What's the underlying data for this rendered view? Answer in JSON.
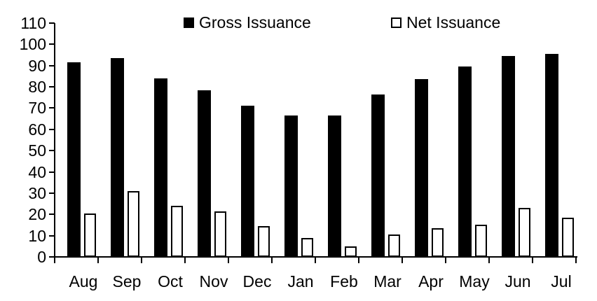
{
  "chart": {
    "background_color": "#ffffff",
    "axis_color": "#000000",
    "text_color": "#000000",
    "bar_fill_color": "#000000",
    "bar_outline_color": "#000000"
  },
  "chart_data": {
    "type": "bar",
    "title": "",
    "xlabel": "",
    "ylabel": "",
    "categories": [
      "Aug",
      "Sep",
      "Oct",
      "Nov",
      "Dec",
      "Jan",
      "Feb",
      "Mar",
      "Apr",
      "May",
      "Jun",
      "Jul"
    ],
    "series": [
      {
        "name": "Gross Issuance",
        "style": "filled",
        "fill_color": "#000000",
        "values": [
          91.5,
          93.5,
          84,
          78.5,
          71,
          66.5,
          66.5,
          76.5,
          83.5,
          89.5,
          94.5,
          95.5
        ]
      },
      {
        "name": "Net Issuance",
        "style": "outlined",
        "fill_color": "#ffffff",
        "border_color": "#000000",
        "values": [
          20.5,
          31,
          24,
          21.5,
          14.5,
          9,
          5,
          10.5,
          13.5,
          15,
          23,
          18.5
        ]
      }
    ],
    "ylim": [
      0,
      110
    ],
    "yticks": [
      0,
      10,
      20,
      30,
      40,
      50,
      60,
      70,
      80,
      90,
      100,
      110
    ],
    "grid": false,
    "legend_position": "top-center"
  }
}
